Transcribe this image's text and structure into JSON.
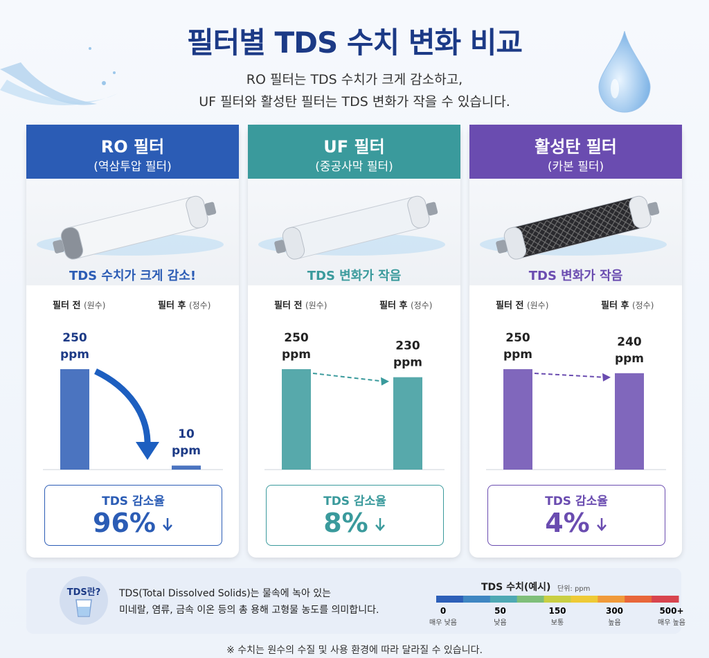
{
  "header": {
    "title": "필터별 TDS 수치 변화 비교",
    "subtitle_lines": [
      "RO 필터는 TDS 수치가 크게 감소하고,",
      "UF 필터와 활성탄 필터는 TDS 변화가 작을 수 있습니다."
    ]
  },
  "cards": [
    {
      "title": "RO 필터",
      "subtitle": "(역삼투압 필터)",
      "color": "#2b5cb5",
      "tagline": "TDS 수치가 크게 감소!",
      "before_label": "필터 전",
      "before_note": "(원수)",
      "after_label": "필터 후",
      "after_note": "(정수)",
      "before": 250,
      "after": 10,
      "unit": "ppm",
      "reduction_label": "TDS 감소율",
      "reduction": "96%"
    },
    {
      "title": "UF 필터",
      "subtitle": "(중공사막 필터)",
      "color": "#3a9a9c",
      "tagline": "TDS 변화가 작음",
      "before_label": "필터 전",
      "before_note": "(원수)",
      "after_label": "필터 후",
      "after_note": "(정수)",
      "before": 250,
      "after": 230,
      "unit": "ppm",
      "reduction_label": "TDS 감소율",
      "reduction": "8%"
    },
    {
      "title": "활성탄 필터",
      "subtitle": "(카본 필터)",
      "color": "#6a4cb0",
      "tagline": "TDS 변화가 작음",
      "before_label": "필터 전",
      "before_note": "(원수)",
      "after_label": "필터 후",
      "after_note": "(정수)",
      "before": 250,
      "after": 240,
      "unit": "ppm",
      "reduction_label": "TDS 감소율",
      "reduction": "4%"
    }
  ],
  "info": {
    "badge": "TDS란?",
    "lines": [
      "TDS(Total Dissolved Solids)는 물속에 녹아 있는",
      "미네랄, 염류, 금속 이온 등의 총 용해 고형물 농도를 의미합니다."
    ],
    "scale_title": "TDS 수치(예시)",
    "scale_unit": "단위: ppm",
    "ticks": [
      {
        "value": 0,
        "desc": "매우 낮음"
      },
      {
        "value": 50,
        "desc": "낮음"
      },
      {
        "value": 150,
        "desc": "보통"
      },
      {
        "value": 300,
        "desc": "높음"
      },
      {
        "value": "500+",
        "desc": "매우 높음"
      }
    ]
  },
  "footnote": "※ 수치는 원수의 수질 및 사용 환경에 따라 달라질 수 있습니다."
}
